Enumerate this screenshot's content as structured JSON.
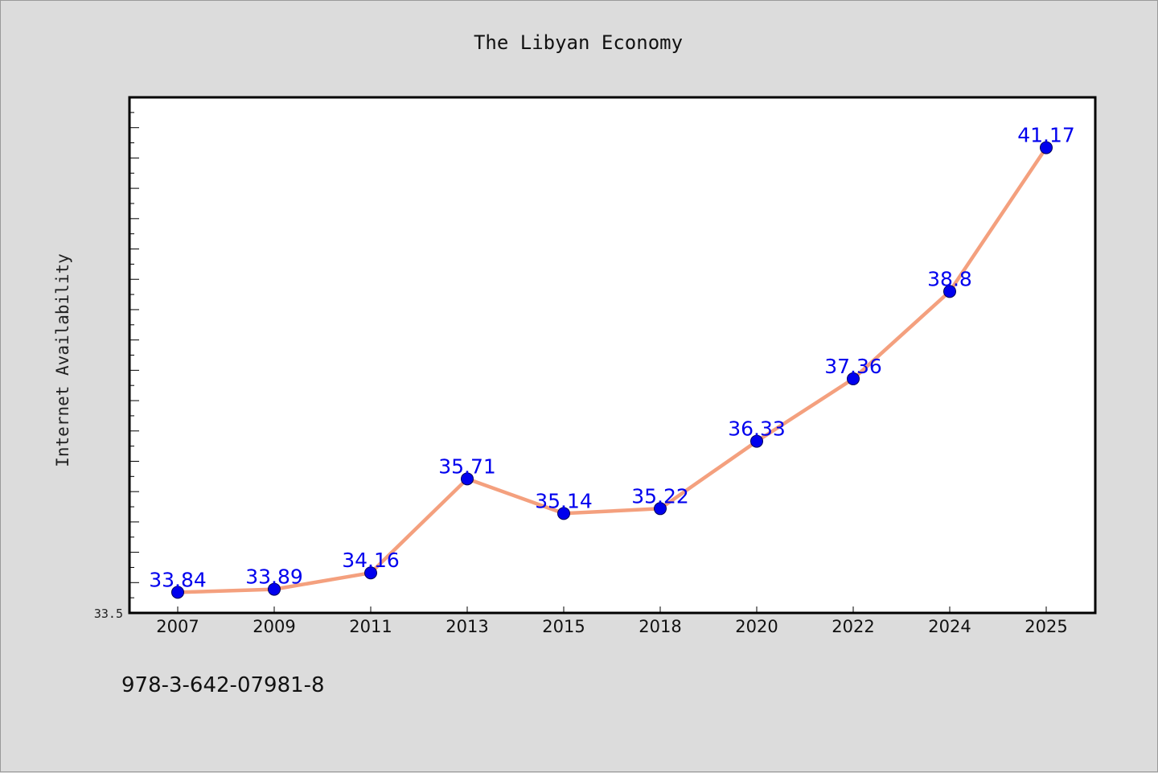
{
  "chart_data": {
    "type": "line",
    "title": "The Libyan Economy",
    "xlabel": "",
    "ylabel": "Internet Availability",
    "categories": [
      "2007",
      "2009",
      "2011",
      "2013",
      "2015",
      "2018",
      "2020",
      "2022",
      "2024",
      "2025"
    ],
    "series": [
      {
        "values": [
          33.84,
          33.89,
          34.16,
          35.71,
          35.14,
          35.22,
          36.33,
          37.36,
          38.8,
          41.17
        ],
        "labels": [
          "33.84",
          "33.89",
          "34.16",
          "35.71",
          "35.14",
          "35.22",
          "36.33",
          "37.36",
          "38.8",
          "41.17"
        ],
        "line_color": "#f4a07e",
        "marker_color": "#0000ee"
      }
    ],
    "ylim": [
      33.5,
      42.0
    ],
    "yticks_labeled": [
      "33.5"
    ],
    "grid": false,
    "legend": "none"
  },
  "footer": {
    "isbn": "978-3-642-07981-8"
  }
}
